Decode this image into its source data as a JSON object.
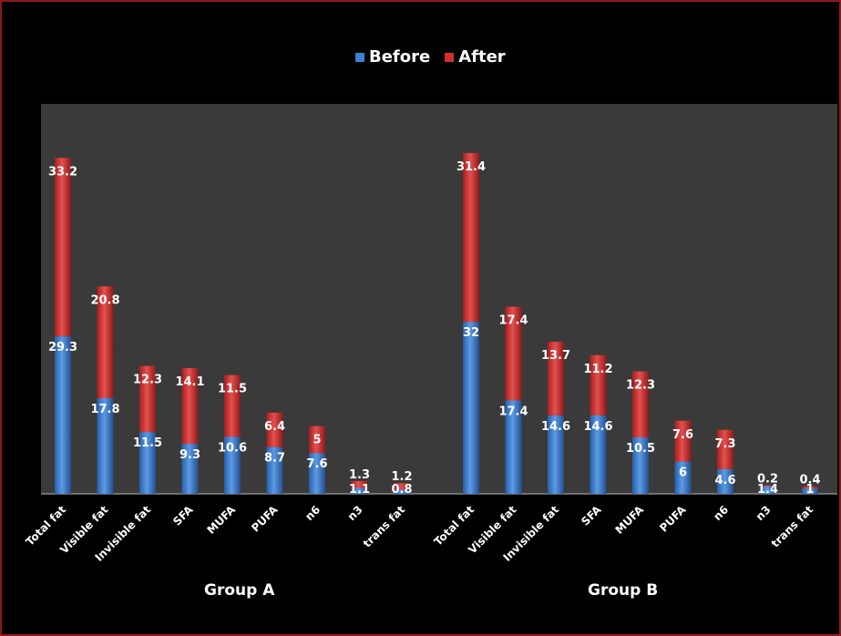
{
  "chart_data": {
    "type": "bar",
    "stacked": true,
    "categories": [
      "Total fat",
      "Visible fat",
      "Invisible fat",
      "SFA",
      "MUFA",
      "PUFA",
      "n6",
      "n3",
      "trans fat"
    ],
    "groups": [
      {
        "name": "Group A",
        "before": [
          29.3,
          17.8,
          11.5,
          9.3,
          10.6,
          8.7,
          7.6,
          1.1,
          0.8
        ],
        "after": [
          33.2,
          20.8,
          12.3,
          14.1,
          11.5,
          6.4,
          5,
          1.3,
          1.2
        ]
      },
      {
        "name": "Group B",
        "before": [
          32,
          17.4,
          14.6,
          14.6,
          10.5,
          6,
          4.6,
          1.4,
          1
        ],
        "after": [
          31.4,
          17.4,
          13.7,
          11.2,
          12.3,
          7.6,
          7.3,
          0.2,
          0.4
        ]
      }
    ],
    "series": [
      {
        "name": "Before",
        "color": "#3d7fd0"
      },
      {
        "name": "After",
        "color": "#d0302f"
      }
    ],
    "legend_position": "top",
    "grid": false
  }
}
